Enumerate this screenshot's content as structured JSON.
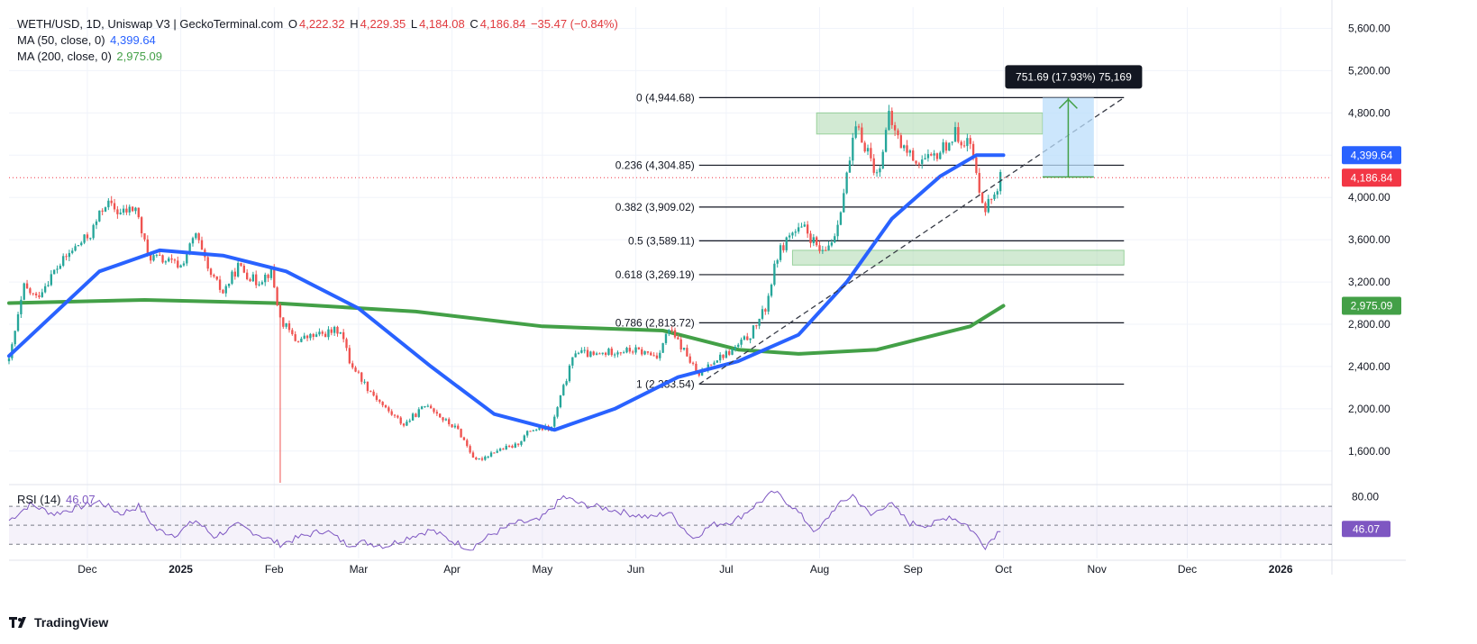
{
  "header": {
    "symbol": "WETH/USD, 1D, Uniswap V3 | GeckoTerminal.com",
    "open_label": "O",
    "open": "4,222.32",
    "high_label": "H",
    "high": "4,229.35",
    "low_label": "L",
    "low": "4,184.08",
    "close_label": "C",
    "close": "4,186.84",
    "change": "−35.47 (−0.84%)",
    "ma50_label": "MA (50, close, 0)",
    "ma50_value": "4,399.64",
    "ma200_label": "MA (200, close, 0)",
    "ma200_value": "2,975.09"
  },
  "rsi_panel": {
    "label": "RSI (14)",
    "value": "46.07"
  },
  "branding": {
    "logo": "tradingview-logo",
    "name": "TradingView"
  },
  "colors": {
    "up": "#26a69a",
    "down": "#ef5350",
    "ma50": "#2962ff",
    "ma200": "#43a047",
    "rsi": "#7e57c2",
    "price": "#f23645"
  },
  "chart_data": {
    "type": "candlestick",
    "price_axis": {
      "ylim": [
        1300,
        5800
      ],
      "ticks": [
        1600,
        2000,
        2400,
        2800,
        3200,
        3600,
        4000,
        4400,
        4800,
        5200,
        5600
      ],
      "tick_labels": [
        "1,600.00",
        "2,000.00",
        "2,400.00",
        "2,800.00",
        "3,200.00",
        "3,600.00",
        "4,000.00",
        "4,400.00",
        "4,800.00",
        "5,200.00",
        "5,600.00"
      ]
    },
    "time_axis": {
      "start": "2024-11-05",
      "end": "2026-01-18",
      "ticks": [
        {
          "date": "2024-12-01",
          "label": "Dec",
          "bold": false
        },
        {
          "date": "2025-01-01",
          "label": "2025",
          "bold": true
        },
        {
          "date": "2025-02-01",
          "label": "Feb",
          "bold": false
        },
        {
          "date": "2025-03-01",
          "label": "Mar",
          "bold": false
        },
        {
          "date": "2025-04-01",
          "label": "Apr",
          "bold": false
        },
        {
          "date": "2025-05-01",
          "label": "May",
          "bold": false
        },
        {
          "date": "2025-06-01",
          "label": "Jun",
          "bold": false
        },
        {
          "date": "2025-07-01",
          "label": "Jul",
          "bold": false
        },
        {
          "date": "2025-08-01",
          "label": "Aug",
          "bold": false
        },
        {
          "date": "2025-09-01",
          "label": "Sep",
          "bold": false
        },
        {
          "date": "2025-10-01",
          "label": "Oct",
          "bold": false
        },
        {
          "date": "2025-11-01",
          "label": "Nov",
          "bold": false
        },
        {
          "date": "2025-12-01",
          "label": "Dec",
          "bold": false
        },
        {
          "date": "2026-01-01",
          "label": "2026",
          "bold": true
        }
      ]
    },
    "close_path": [
      [
        "2024-11-05",
        2450
      ],
      [
        "2024-11-10",
        3150
      ],
      [
        "2024-11-14",
        3050
      ],
      [
        "2024-11-20",
        3300
      ],
      [
        "2024-11-26",
        3500
      ],
      [
        "2024-12-02",
        3650
      ],
      [
        "2024-12-07",
        3950
      ],
      [
        "2024-12-12",
        3850
      ],
      [
        "2024-12-17",
        3900
      ],
      [
        "2024-12-21",
        3450
      ],
      [
        "2024-12-27",
        3400
      ],
      [
        "2025-01-01",
        3350
      ],
      [
        "2025-01-06",
        3650
      ],
      [
        "2025-01-10",
        3300
      ],
      [
        "2025-01-15",
        3100
      ],
      [
        "2025-01-20",
        3350
      ],
      [
        "2025-01-26",
        3200
      ],
      [
        "2025-01-31",
        3300
      ],
      [
        "2025-02-03",
        2850
      ],
      [
        "2025-02-08",
        2650
      ],
      [
        "2025-02-16",
        2700
      ],
      [
        "2025-02-23",
        2750
      ],
      [
        "2025-02-26",
        2450
      ],
      [
        "2025-03-04",
        2200
      ],
      [
        "2025-03-10",
        2000
      ],
      [
        "2025-03-16",
        1850
      ],
      [
        "2025-03-24",
        2050
      ],
      [
        "2025-03-29",
        1900
      ],
      [
        "2025-04-03",
        1800
      ],
      [
        "2025-04-09",
        1500
      ],
      [
        "2025-04-15",
        1600
      ],
      [
        "2025-04-22",
        1650
      ],
      [
        "2025-04-27",
        1800
      ],
      [
        "2025-05-04",
        1820
      ],
      [
        "2025-05-08",
        2200
      ],
      [
        "2025-05-12",
        2550
      ],
      [
        "2025-05-18",
        2500
      ],
      [
        "2025-05-25",
        2550
      ],
      [
        "2025-06-01",
        2550
      ],
      [
        "2025-06-08",
        2500
      ],
      [
        "2025-06-12",
        2750
      ],
      [
        "2025-06-17",
        2550
      ],
      [
        "2025-06-22",
        2300
      ],
      [
        "2025-06-26",
        2450
      ],
      [
        "2025-07-03",
        2550
      ],
      [
        "2025-07-09",
        2700
      ],
      [
        "2025-07-14",
        2950
      ],
      [
        "2025-07-18",
        3450
      ],
      [
        "2025-07-22",
        3650
      ],
      [
        "2025-07-27",
        3700
      ],
      [
        "2025-08-02",
        3450
      ],
      [
        "2025-08-06",
        3650
      ],
      [
        "2025-08-09",
        4050
      ],
      [
        "2025-08-13",
        4650
      ],
      [
        "2025-08-17",
        4450
      ],
      [
        "2025-08-20",
        4200
      ],
      [
        "2025-08-24",
        4750
      ],
      [
        "2025-08-28",
        4500
      ],
      [
        "2025-09-02",
        4350
      ],
      [
        "2025-09-07",
        4350
      ],
      [
        "2025-09-12",
        4500
      ],
      [
        "2025-09-15",
        4600
      ],
      [
        "2025-09-20",
        4500
      ],
      [
        "2025-09-22",
        4200
      ],
      [
        "2025-09-25",
        3900
      ],
      [
        "2025-09-28",
        4050
      ],
      [
        "2025-09-30",
        4187
      ]
    ],
    "ma50_path": [
      [
        "2024-11-05",
        2500
      ],
      [
        "2024-12-05",
        3300
      ],
      [
        "2024-12-25",
        3500
      ],
      [
        "2025-01-15",
        3450
      ],
      [
        "2025-02-05",
        3300
      ],
      [
        "2025-03-01",
        2950
      ],
      [
        "2025-03-25",
        2400
      ],
      [
        "2025-04-15",
        1950
      ],
      [
        "2025-05-05",
        1800
      ],
      [
        "2025-05-25",
        2000
      ],
      [
        "2025-06-15",
        2300
      ],
      [
        "2025-07-05",
        2450
      ],
      [
        "2025-07-25",
        2700
      ],
      [
        "2025-08-10",
        3200
      ],
      [
        "2025-08-25",
        3800
      ],
      [
        "2025-09-10",
        4200
      ],
      [
        "2025-09-22",
        4400
      ],
      [
        "2025-10-01",
        4399.64
      ]
    ],
    "ma200_path": [
      [
        "2024-11-05",
        3000
      ],
      [
        "2024-12-20",
        3030
      ],
      [
        "2025-02-01",
        3000
      ],
      [
        "2025-03-20",
        2920
      ],
      [
        "2025-05-01",
        2780
      ],
      [
        "2025-06-10",
        2740
      ],
      [
        "2025-07-05",
        2560
      ],
      [
        "2025-07-25",
        2520
      ],
      [
        "2025-08-20",
        2560
      ],
      [
        "2025-09-20",
        2780
      ],
      [
        "2025-10-01",
        2975.09
      ]
    ],
    "fibonacci": {
      "start_date": "2025-06-22",
      "end_date": "2025-11-10",
      "levels": [
        {
          "ratio": "0",
          "price": 4944.68,
          "label": "0 (4,944.68)"
        },
        {
          "ratio": "0.236",
          "price": 4304.85,
          "label": "0.236 (4,304.85)"
        },
        {
          "ratio": "0.382",
          "price": 3909.02,
          "label": "0.382 (3,909.02)"
        },
        {
          "ratio": "0.5",
          "price": 3589.11,
          "label": "0.5 (3,589.11)"
        },
        {
          "ratio": "0.618",
          "price": 3269.19,
          "label": "0.618 (3,269.19)"
        },
        {
          "ratio": "0.786",
          "price": 2813.72,
          "label": "0.786 (2,813.72)"
        },
        {
          "ratio": "1",
          "price": 2233.54,
          "label": "1 (2,233.54)"
        }
      ]
    },
    "zones": [
      {
        "from": "2025-07-31",
        "to": "2025-10-14",
        "top": 4800,
        "bottom": 4600,
        "color": "#a5d6a7"
      },
      {
        "from": "2025-07-23",
        "to": "2025-11-10",
        "top": 3500,
        "bottom": 3360,
        "color": "#a5d6a7"
      }
    ],
    "trendline": {
      "from": [
        "2025-06-22",
        2233
      ],
      "to": [
        "2025-11-10",
        4944
      ]
    },
    "measure": {
      "from_date": "2025-10-14",
      "to_date": "2025-10-31",
      "low": 4193,
      "high": 4944.68,
      "label": "751.69 (17.93%) 75,169"
    },
    "current_price": {
      "value": 4186.84,
      "label": "4,186.84"
    },
    "badges": [
      {
        "value": 4399.64,
        "label": "4,399.64",
        "color": "#2962ff"
      },
      {
        "value": 4186.84,
        "label": "4,186.84",
        "color": "#f23645"
      },
      {
        "value": 2975.09,
        "label": "2,975.09",
        "color": "#43a047"
      }
    ],
    "rsi": {
      "ylim": [
        15,
        90
      ],
      "upper": 70,
      "lower": 30,
      "mid": 50,
      "tick_labels": [
        {
          "value": 80,
          "label": "80.00"
        }
      ],
      "current": {
        "value": 46.07,
        "label": "46.07"
      },
      "path": [
        [
          "2024-11-05",
          55
        ],
        [
          "2024-11-12",
          72
        ],
        [
          "2024-11-20",
          62
        ],
        [
          "2024-11-27",
          68
        ],
        [
          "2024-12-05",
          75
        ],
        [
          "2024-12-12",
          62
        ],
        [
          "2024-12-18",
          70
        ],
        [
          "2024-12-24",
          45
        ],
        [
          "2024-12-30",
          40
        ],
        [
          "2025-01-06",
          55
        ],
        [
          "2025-01-12",
          38
        ],
        [
          "2025-01-20",
          50
        ],
        [
          "2025-01-27",
          40
        ],
        [
          "2025-02-03",
          30
        ],
        [
          "2025-02-10",
          38
        ],
        [
          "2025-02-18",
          45
        ],
        [
          "2025-02-25",
          30
        ],
        [
          "2025-03-03",
          32
        ],
        [
          "2025-03-10",
          28
        ],
        [
          "2025-03-18",
          38
        ],
        [
          "2025-03-25",
          45
        ],
        [
          "2025-03-31",
          35
        ],
        [
          "2025-04-07",
          25
        ],
        [
          "2025-04-14",
          40
        ],
        [
          "2025-04-22",
          52
        ],
        [
          "2025-04-30",
          55
        ],
        [
          "2025-05-08",
          80
        ],
        [
          "2025-05-14",
          72
        ],
        [
          "2025-05-22",
          68
        ],
        [
          "2025-05-30",
          62
        ],
        [
          "2025-06-06",
          58
        ],
        [
          "2025-06-12",
          64
        ],
        [
          "2025-06-20",
          36
        ],
        [
          "2025-06-26",
          50
        ],
        [
          "2025-07-04",
          55
        ],
        [
          "2025-07-11",
          72
        ],
        [
          "2025-07-17",
          85
        ],
        [
          "2025-07-23",
          70
        ],
        [
          "2025-07-31",
          42
        ],
        [
          "2025-08-06",
          68
        ],
        [
          "2025-08-12",
          82
        ],
        [
          "2025-08-18",
          60
        ],
        [
          "2025-08-24",
          74
        ],
        [
          "2025-08-31",
          52
        ],
        [
          "2025-09-07",
          50
        ],
        [
          "2025-09-13",
          60
        ],
        [
          "2025-09-19",
          50
        ],
        [
          "2025-09-25",
          28
        ],
        [
          "2025-09-30",
          46
        ]
      ]
    }
  }
}
